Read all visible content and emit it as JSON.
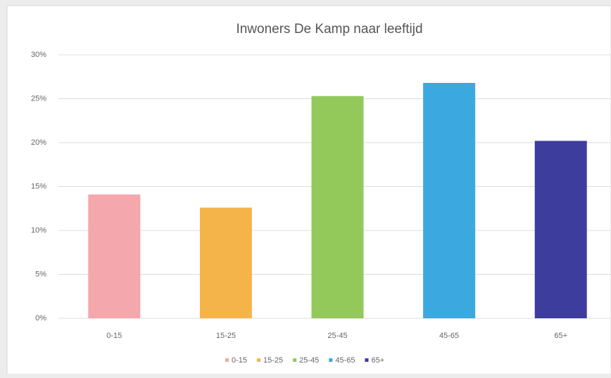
{
  "chart_data": {
    "type": "bar",
    "title": "Inwoners De Kamp naar leeftijd",
    "categories": [
      "0-15",
      "15-25",
      "25-45",
      "45-65",
      "65+"
    ],
    "values": [
      14.1,
      12.6,
      25.3,
      26.8,
      20.2
    ],
    "colors": [
      "#f4a7ad",
      "#f5b44a",
      "#92c95a",
      "#3ba9e0",
      "#3c3d9c"
    ],
    "ylim": [
      0,
      30
    ],
    "yticks": [
      {
        "value": 0,
        "label": "0%"
      },
      {
        "value": 5,
        "label": "5%"
      },
      {
        "value": 10,
        "label": "10%"
      },
      {
        "value": 15,
        "label": "15%"
      },
      {
        "value": 20,
        "label": "20%"
      },
      {
        "value": 25,
        "label": "25%"
      },
      {
        "value": 30,
        "label": "30%"
      }
    ],
    "grid": true,
    "legend": "bottom"
  }
}
